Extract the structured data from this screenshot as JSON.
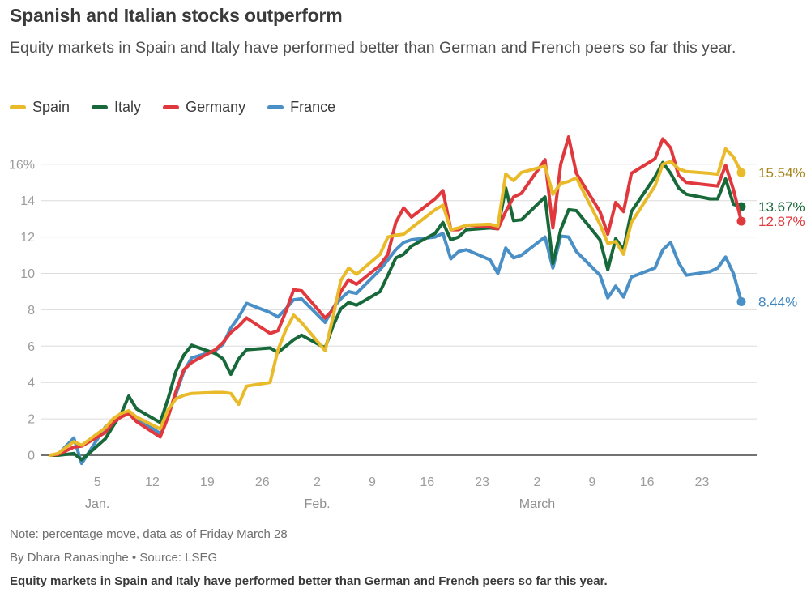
{
  "header": {
    "title": "Spanish and Italian stocks outperform",
    "subtitle": "Equity markets in Spain and Italy have performed better than German and French peers so far this year."
  },
  "footer": {
    "note": "Note: percentage move, data as of Friday March 28",
    "byline": "By Dhara Ranasinghe  • Source: LSEG",
    "caption": "Equity markets in Spain and Italy have performed better than German and French peers so far this year."
  },
  "chart_data": {
    "type": "line",
    "title": "Spanish and Italian stocks outperform",
    "ylabel": "percentage move",
    "xlabel": "",
    "grid": true,
    "legend_position": "top",
    "ylim": [
      -1,
      18
    ],
    "yticks": [
      0,
      2,
      4,
      6,
      8,
      10,
      12,
      14,
      16
    ],
    "ytick_labels": [
      "0",
      "2",
      "4",
      "6",
      "8",
      "10",
      "12",
      "14",
      "16%"
    ],
    "xticks": [
      {
        "label": "5",
        "day": 6
      },
      {
        "label": "12",
        "day": 13
      },
      {
        "label": "19",
        "day": 20
      },
      {
        "label": "26",
        "day": 27
      },
      {
        "label": "2",
        "day": 34
      },
      {
        "label": "9",
        "day": 41
      },
      {
        "label": "16",
        "day": 48
      },
      {
        "label": "23",
        "day": 55
      },
      {
        "label": "2",
        "day": 62
      },
      {
        "label": "9",
        "day": 69
      },
      {
        "label": "16",
        "day": 76
      },
      {
        "label": "23",
        "day": 83
      }
    ],
    "month_labels": [
      {
        "label": "Jan.",
        "day": 6
      },
      {
        "label": "Feb.",
        "day": 34
      },
      {
        "label": "March",
        "day": 62
      }
    ],
    "x_dates": [
      "Dec 30",
      "Dec 31",
      "Jan 2",
      "Jan 3",
      "Jan 6",
      "Jan 7",
      "Jan 8",
      "Jan 9",
      "Jan 10",
      "Jan 13",
      "Jan 14",
      "Jan 15",
      "Jan 16",
      "Jan 17",
      "Jan 20",
      "Jan 21",
      "Jan 22",
      "Jan 23",
      "Jan 24",
      "Jan 27",
      "Jan 28",
      "Jan 29",
      "Jan 30",
      "Jan 31",
      "Feb 3",
      "Feb 4",
      "Feb 5",
      "Feb 6",
      "Feb 7",
      "Feb 10",
      "Feb 11",
      "Feb 12",
      "Feb 13",
      "Feb 14",
      "Feb 17",
      "Feb 18",
      "Feb 19",
      "Feb 20",
      "Feb 21",
      "Feb 24",
      "Feb 25",
      "Feb 26",
      "Feb 27",
      "Feb 28",
      "Mar 3",
      "Mar 4",
      "Mar 5",
      "Mar 6",
      "Mar 7",
      "Mar 10",
      "Mar 11",
      "Mar 12",
      "Mar 13",
      "Mar 14",
      "Mar 17",
      "Mar 18",
      "Mar 19",
      "Mar 20",
      "Mar 21",
      "Mar 24",
      "Mar 25",
      "Mar 26",
      "Mar 27",
      "Mar 28"
    ],
    "x_days": [
      0,
      1,
      3,
      4,
      7,
      8,
      9,
      10,
      11,
      14,
      15,
      16,
      17,
      18,
      21,
      22,
      23,
      24,
      25,
      28,
      29,
      30,
      31,
      32,
      35,
      36,
      37,
      38,
      39,
      42,
      43,
      44,
      45,
      46,
      49,
      50,
      51,
      52,
      53,
      56,
      57,
      58,
      59,
      60,
      63,
      64,
      65,
      66,
      67,
      70,
      71,
      72,
      73,
      74,
      77,
      78,
      79,
      80,
      81,
      84,
      85,
      86,
      87,
      88
    ],
    "series": [
      {
        "name": "France",
        "color": "#4a90c6",
        "label_color": "#3f86bf",
        "end_label": "8.44%",
        "values": [
          0,
          0.05,
          0.95,
          -0.45,
          1.55,
          1.9,
          2.3,
          2.35,
          2.05,
          1.2,
          2.2,
          3.35,
          4.6,
          5.35,
          5.75,
          6.1,
          7.0,
          7.6,
          8.35,
          7.85,
          7.6,
          8.05,
          8.55,
          8.6,
          7.3,
          8.1,
          8.6,
          9.0,
          8.9,
          10.2,
          10.75,
          11.3,
          11.7,
          11.85,
          12.0,
          12.2,
          10.8,
          11.2,
          11.3,
          10.75,
          10.0,
          11.4,
          10.85,
          11.0,
          12.0,
          10.3,
          12.05,
          12.0,
          11.2,
          9.9,
          8.65,
          9.3,
          8.7,
          9.8,
          10.3,
          11.3,
          11.7,
          10.6,
          9.9,
          10.1,
          10.3,
          10.9,
          10.0,
          8.44
        ]
      },
      {
        "name": "Italy",
        "color": "#17693a",
        "label_color": "#17693a",
        "end_label": "13.67%",
        "values": [
          0,
          0,
          0.1,
          -0.25,
          0.9,
          1.6,
          2.25,
          3.25,
          2.55,
          1.8,
          3.1,
          4.6,
          5.5,
          6.05,
          5.6,
          5.3,
          4.45,
          5.3,
          5.8,
          5.9,
          5.65,
          6.0,
          6.35,
          6.6,
          5.9,
          7.1,
          8.05,
          8.4,
          8.25,
          9.0,
          9.9,
          10.85,
          11.05,
          11.5,
          12.2,
          12.8,
          11.85,
          12.0,
          12.4,
          12.5,
          12.45,
          14.7,
          12.9,
          12.95,
          14.2,
          10.55,
          12.4,
          13.5,
          13.45,
          11.85,
          10.2,
          11.9,
          11.3,
          13.4,
          15.3,
          16.1,
          15.5,
          14.7,
          14.35,
          14.1,
          14.1,
          15.2,
          13.8,
          13.67
        ]
      },
      {
        "name": "Germany",
        "color": "#e1383d",
        "label_color": "#e1383d",
        "end_label": "12.87%",
        "values": [
          0,
          0.05,
          0.45,
          0.5,
          1.25,
          1.8,
          2.1,
          2.3,
          1.85,
          1.0,
          2.1,
          3.5,
          4.7,
          5.1,
          5.8,
          6.2,
          6.75,
          7.1,
          7.55,
          6.7,
          6.85,
          7.9,
          9.1,
          9.05,
          7.55,
          8.0,
          9.0,
          9.65,
          9.4,
          10.45,
          11.05,
          12.8,
          13.6,
          13.1,
          14.1,
          14.55,
          12.4,
          12.4,
          12.65,
          12.55,
          12.45,
          13.4,
          14.2,
          14.4,
          16.25,
          12.5,
          16.0,
          17.5,
          15.5,
          13.4,
          12.15,
          13.9,
          13.4,
          15.5,
          16.3,
          17.4,
          16.9,
          15.4,
          15.0,
          14.85,
          14.8,
          15.95,
          14.6,
          12.87
        ]
      },
      {
        "name": "Spain",
        "color": "#e9ba29",
        "label_color": "#a5851c",
        "end_label": "15.54%",
        "values": [
          0,
          0.1,
          0.75,
          0.55,
          1.5,
          2.0,
          2.3,
          2.45,
          2.1,
          1.45,
          2.5,
          3.1,
          3.3,
          3.4,
          3.45,
          3.45,
          3.4,
          2.8,
          3.8,
          4.0,
          5.8,
          6.9,
          7.7,
          7.3,
          5.75,
          7.6,
          9.6,
          10.3,
          9.95,
          11.05,
          12.0,
          12.1,
          12.15,
          12.5,
          13.5,
          13.75,
          12.4,
          12.5,
          12.65,
          12.7,
          12.6,
          15.45,
          15.1,
          15.55,
          15.9,
          14.35,
          14.95,
          15.05,
          15.25,
          12.7,
          11.65,
          11.75,
          11.05,
          12.8,
          14.8,
          16.0,
          16.15,
          15.75,
          15.6,
          15.5,
          15.45,
          16.85,
          16.4,
          15.54
        ]
      }
    ],
    "legend_order": [
      "Spain",
      "Italy",
      "Germany",
      "France"
    ]
  }
}
